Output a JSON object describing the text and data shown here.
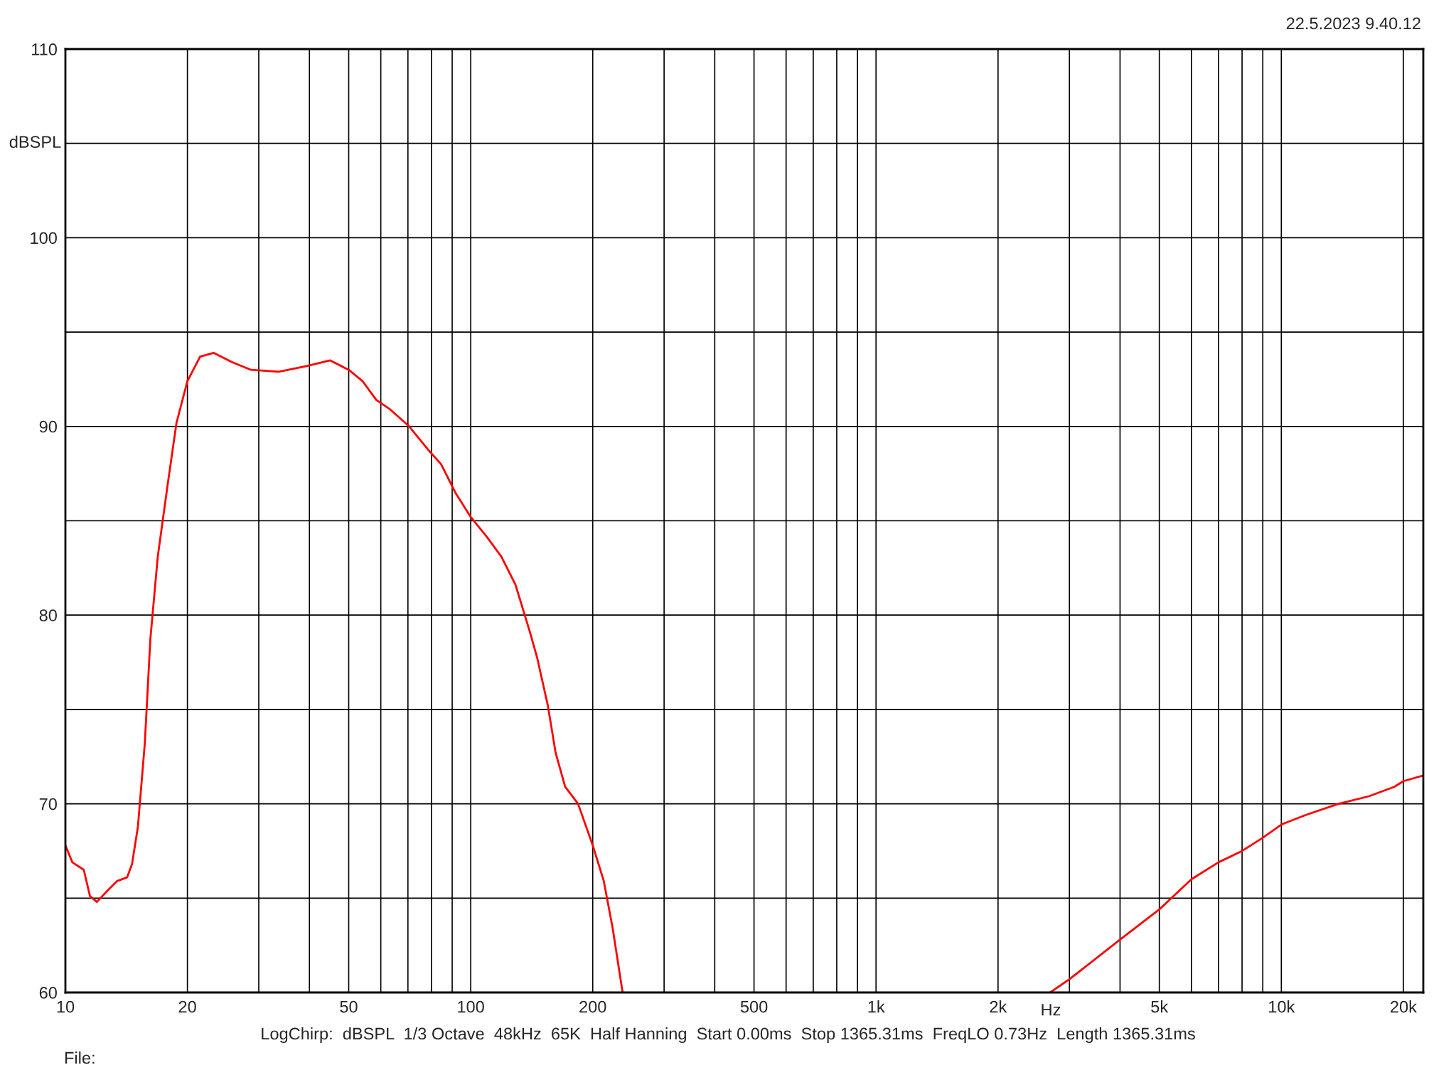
{
  "chart_data": {
    "type": "line",
    "xlabel": "Hz",
    "ylabel": "dBSPL",
    "log": "x",
    "grid": true,
    "marker": "none",
    "line_style": "solid",
    "xlim": [
      10,
      22400
    ],
    "ylim": [
      60,
      110
    ],
    "xticks": [
      10,
      20,
      {
        "value": 30,
        "label": null
      },
      {
        "value": 40,
        "label": null
      },
      50,
      {
        "value": 60,
        "label": null
      },
      {
        "value": 70,
        "label": null
      },
      {
        "value": 80,
        "label": null
      },
      {
        "value": 90,
        "label": null
      },
      100,
      200,
      {
        "value": 300,
        "label": null
      },
      {
        "value": 400,
        "label": null
      },
      500,
      {
        "value": 600,
        "label": null
      },
      {
        "value": 700,
        "label": null
      },
      {
        "value": 800,
        "label": null
      },
      {
        "value": 900,
        "label": null
      },
      {
        "value": 1000,
        "label": "1k"
      },
      {
        "value": 2000,
        "label": "2k"
      },
      {
        "value": 3000,
        "label": null
      },
      {
        "value": 4000,
        "label": null
      },
      {
        "value": 5000,
        "label": "5k"
      },
      {
        "value": 6000,
        "label": null
      },
      {
        "value": 7000,
        "label": null
      },
      {
        "value": 8000,
        "label": null
      },
      {
        "value": 9000,
        "label": null
      },
      {
        "value": 10000,
        "label": "10k"
      },
      {
        "value": 20000,
        "label": "20k"
      }
    ],
    "yticks": [
      60,
      {
        "value": 65,
        "label": null
      },
      70,
      {
        "value": 75,
        "label": null
      },
      80,
      {
        "value": 85,
        "label": null
      },
      90,
      {
        "value": 95,
        "label": null
      },
      100,
      {
        "value": 105,
        "label": null
      },
      110
    ],
    "series": [
      {
        "color": "#ff0000",
        "x": [
          10,
          10.4,
          11.1,
          11.5,
          11.96,
          12.7,
          13.4,
          14.2,
          14.6,
          15.1,
          15.7,
          16.2,
          16.9,
          17.9,
          18.8,
          20.0,
          21.5,
          23.2,
          25.8,
          28.7,
          33.6,
          39.4,
          45,
          50,
          54.1,
          58.5,
          63.3,
          70.5,
          79,
          84.5,
          91.6,
          100,
          110,
          119,
          129,
          140,
          146,
          155,
          162,
          171,
          184,
          200,
          213,
          224,
          237,
          1000,
          2690,
          3000,
          4000,
          5000,
          6000,
          7000,
          8000,
          9000,
          10000,
          11470,
          13840,
          16450,
          19000,
          20000,
          22400
        ],
        "values": [
          67.8,
          66.9,
          66.5,
          65.1,
          64.8,
          65.4,
          65.9,
          66.1,
          66.8,
          68.8,
          73.2,
          78.7,
          83.1,
          87.0,
          90.2,
          92.4,
          93.7,
          93.9,
          93.4,
          93.0,
          92.9,
          93.2,
          93.5,
          93.0,
          92.4,
          91.4,
          90.9,
          90.0,
          88.7,
          88.0,
          86.5,
          85.2,
          84.1,
          83.1,
          81.6,
          79.1,
          77.7,
          75.2,
          72.7,
          70.9,
          70.0,
          67.8,
          65.9,
          63.4,
          60,
          null,
          60,
          60.7,
          62.8,
          64.4,
          66.0,
          66.9,
          67.5,
          68.2,
          68.9,
          69.4,
          70.0,
          70.4,
          70.9,
          71.2,
          71.5
        ]
      }
    ],
    "annotations": [
      "22.5.2023 9.40.12",
      "LogChirp:  dBSPL  1/3 Octave  48kHz  65K  Half Hanning  Start 0.00ms  Stop 1365.31ms  FreqLO 0.73Hz  Length 1365.31ms",
      "File:"
    ]
  }
}
